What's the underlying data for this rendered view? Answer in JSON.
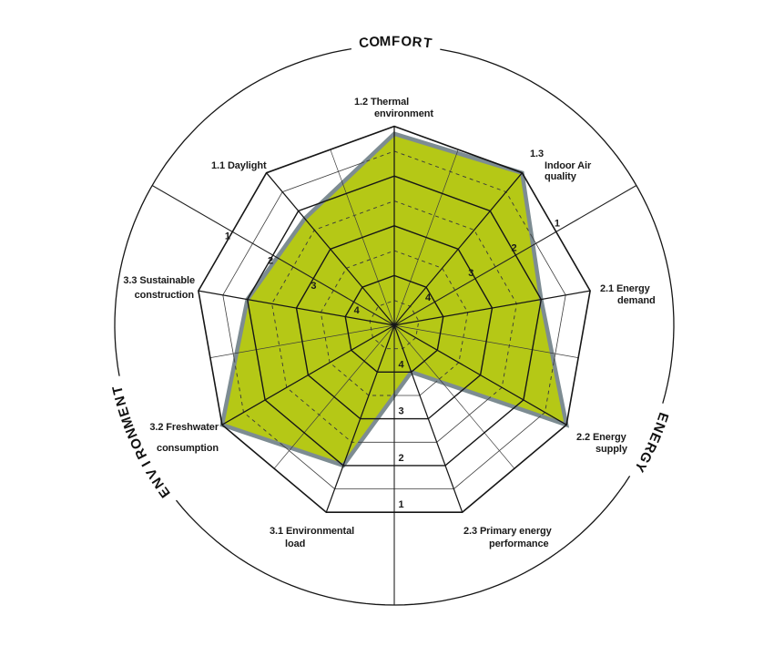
{
  "chart_data": {
    "type": "radar",
    "title": "",
    "scale": {
      "outer_value": 1,
      "center_value": 5,
      "ring_values": [
        1,
        2,
        3,
        4
      ],
      "half_rings": [
        1.5,
        2.5,
        3.5,
        4.5
      ],
      "note": "grade 1 at outer edge, grade 5 at center; numeric tick labels 1-4 shown on three bisector rays"
    },
    "tick_labels": [
      "1",
      "2",
      "3",
      "4"
    ],
    "axes": [
      {
        "id": "axis-1-2",
        "angle": 90,
        "value": 1.15,
        "label_lines": [
          "1.2 Thermal",
          "environment"
        ]
      },
      {
        "id": "axis-1-3",
        "angle": 50,
        "value": 1.0,
        "label_lines": [
          "1.3",
          "Indoor Air",
          "quality"
        ]
      },
      {
        "id": "axis-2-1",
        "angle": 10,
        "value": 2.0,
        "label_lines": [
          "2.1 Energy",
          "demand"
        ]
      },
      {
        "id": "axis-2-2",
        "angle": -30,
        "value": 1.0,
        "label_lines": [
          "2.2 Energy",
          "supply"
        ]
      },
      {
        "id": "axis-2-3",
        "angle": -70,
        "value": 4.0,
        "label_lines": [
          "2.3 Primary energy",
          "performance"
        ]
      },
      {
        "id": "axis-3-1",
        "angle": -110,
        "value": 2.0,
        "label_lines": [
          "3.1 Environmental",
          "load"
        ]
      },
      {
        "id": "axis-3-2",
        "angle": -150,
        "value": 1.0,
        "label_lines": [
          "3.2 Freshwater",
          "consumption"
        ]
      },
      {
        "id": "axis-3-3",
        "angle": 170,
        "value": 2.0,
        "label_lines": [
          "3.3 Sustainable",
          "construction"
        ]
      },
      {
        "id": "axis-1-1",
        "angle": 130,
        "value": 2.2,
        "label_lines": [
          "1.1 Daylight"
        ]
      }
    ],
    "scale_rays": [
      {
        "angle": 30,
        "labels": [
          "1",
          "2",
          "3",
          "4"
        ]
      },
      {
        "angle": 150,
        "labels": [
          "1",
          "2",
          "3",
          "4"
        ]
      },
      {
        "angle": -90,
        "labels": [
          "1",
          "2",
          "3",
          "4"
        ]
      }
    ],
    "arc_labels": [
      {
        "text": "COMFORT",
        "center_angle": 89.7,
        "letter_step_deg": 2.15
      },
      {
        "text": "ENERGY",
        "center_angle": -24.4,
        "letter_step_deg": 2.2
      },
      {
        "text": "ENVIRONMENT",
        "center_angle": 204.6,
        "letter_step_deg": 2.28
      }
    ],
    "colors": {
      "background": "#ffffff",
      "fill": "#b5c816",
      "fill_outline": "#7d8c92",
      "grid_major": "#161616",
      "grid_minor": "#3c3c3c",
      "text": "#1a1a1a"
    }
  }
}
